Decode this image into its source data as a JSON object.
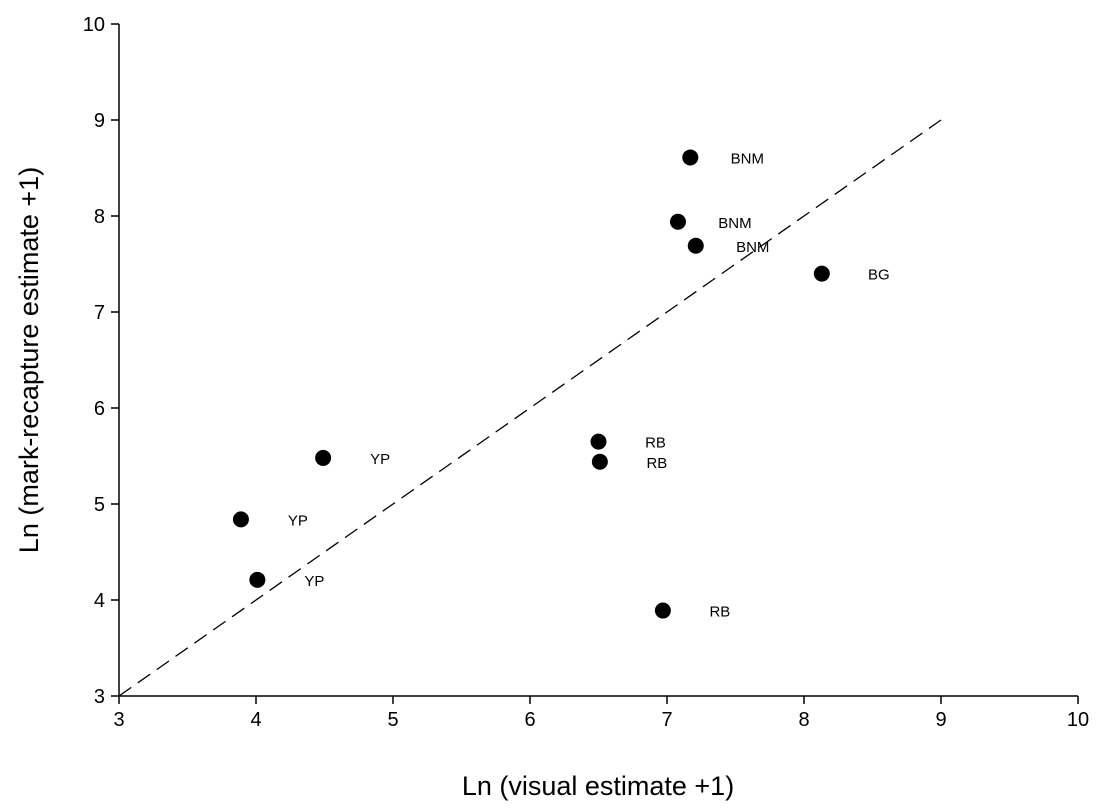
{
  "chart_data": {
    "type": "scatter",
    "title": "",
    "xlabel": "Ln (visual estimate +1)",
    "ylabel": "Ln (mark-recapture estimate +1)",
    "xlim": [
      3,
      10
    ],
    "ylim": [
      3,
      10
    ],
    "xticks": [
      "3",
      "4",
      "5",
      "6",
      "7",
      "8",
      "9",
      "10"
    ],
    "yticks": [
      "3",
      "4",
      "5",
      "6",
      "7",
      "8",
      "9",
      "10"
    ],
    "grid": false,
    "points": [
      {
        "x": 7.17,
        "y": 8.61,
        "label": "BNM"
      },
      {
        "x": 7.08,
        "y": 7.94,
        "label": "BNM"
      },
      {
        "x": 7.21,
        "y": 7.69,
        "label": "BNM"
      },
      {
        "x": 8.13,
        "y": 7.4,
        "label": "BG"
      },
      {
        "x": 6.5,
        "y": 5.65,
        "label": "RB"
      },
      {
        "x": 6.51,
        "y": 5.44,
        "label": "RB"
      },
      {
        "x": 6.97,
        "y": 3.89,
        "label": "RB"
      },
      {
        "x": 4.49,
        "y": 5.48,
        "label": "YP"
      },
      {
        "x": 3.89,
        "y": 4.84,
        "label": "YP"
      },
      {
        "x": 4.01,
        "y": 4.21,
        "label": "YP"
      }
    ],
    "reference_line": {
      "style": "dashed",
      "x": [
        3,
        9
      ],
      "y": [
        3,
        9
      ]
    }
  }
}
